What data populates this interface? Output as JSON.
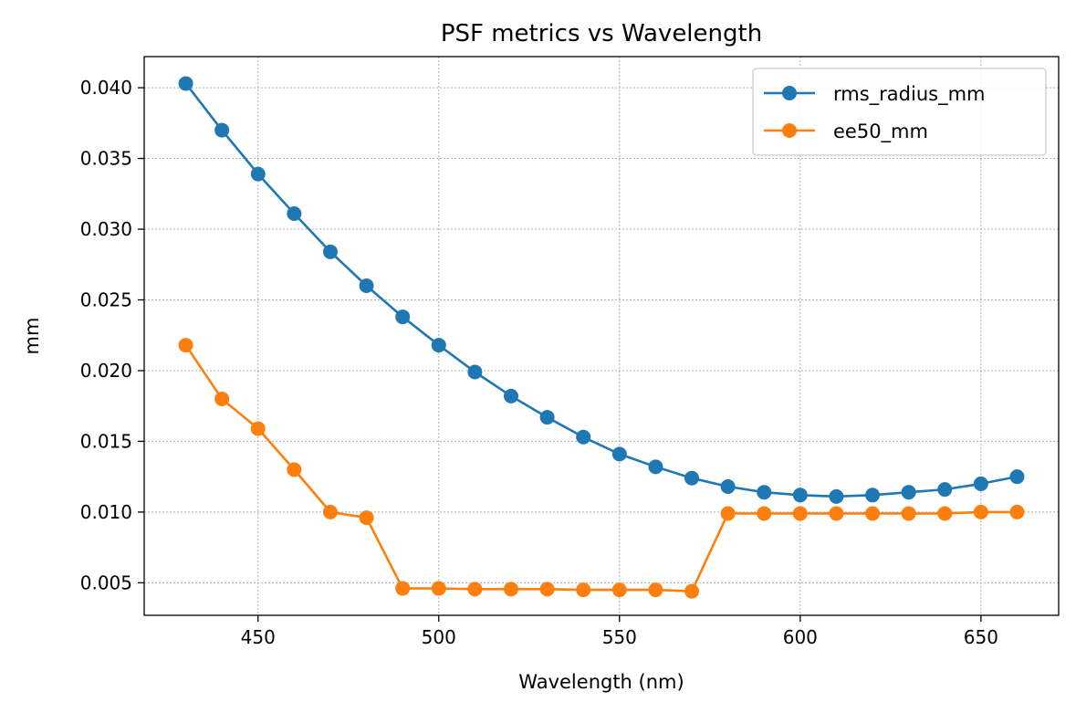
{
  "chart_data": {
    "type": "line",
    "title": "PSF metrics vs Wavelength",
    "xlabel": "Wavelength (nm)",
    "ylabel": "mm",
    "xlim": [
      418.5,
      671.5
    ],
    "ylim": [
      0.0027,
      0.0422
    ],
    "xticks": [
      450,
      500,
      550,
      600,
      650
    ],
    "xtick_labels": [
      "450",
      "500",
      "550",
      "600",
      "650"
    ],
    "yticks": [
      0.005,
      0.01,
      0.015,
      0.02,
      0.025,
      0.03,
      0.035,
      0.04
    ],
    "ytick_labels": [
      "0.005",
      "0.010",
      "0.015",
      "0.020",
      "0.025",
      "0.030",
      "0.035",
      "0.040"
    ],
    "grid": true,
    "legend_position": "top-right",
    "x": [
      430,
      440,
      450,
      460,
      470,
      480,
      490,
      500,
      510,
      520,
      530,
      540,
      550,
      560,
      570,
      580,
      590,
      600,
      610,
      620,
      630,
      640,
      650,
      660
    ],
    "series": [
      {
        "name": "rms_radius_mm",
        "color": "#1f77b4",
        "values": [
          0.0403,
          0.037,
          0.0339,
          0.0311,
          0.0284,
          0.026,
          0.0238,
          0.0218,
          0.0199,
          0.0182,
          0.0167,
          0.0153,
          0.0141,
          0.0132,
          0.0124,
          0.0118,
          0.0114,
          0.0112,
          0.0111,
          0.0112,
          0.0114,
          0.0116,
          0.012,
          0.0125
        ]
      },
      {
        "name": "ee50_mm",
        "color": "#ff7f0e",
        "values": [
          0.0218,
          0.018,
          0.0159,
          0.013,
          0.01,
          0.0096,
          0.0046,
          0.0046,
          0.00455,
          0.00455,
          0.00455,
          0.0045,
          0.0045,
          0.0045,
          0.0044,
          0.0099,
          0.0099,
          0.0099,
          0.0099,
          0.0099,
          0.0099,
          0.0099,
          0.01,
          0.01
        ]
      }
    ]
  }
}
